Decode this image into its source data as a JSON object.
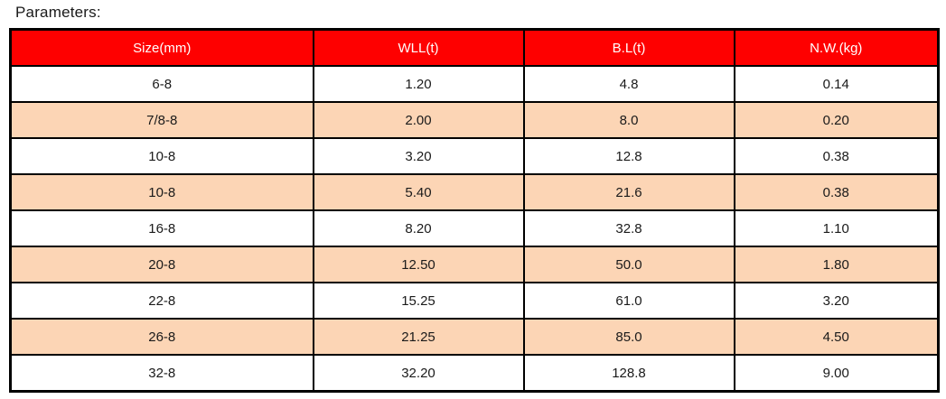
{
  "title": "Parameters:",
  "colors": {
    "header_bg": "#FE0000",
    "header_text": "#FFFFFF",
    "row_bg": "#FFFFFF",
    "row_alt_bg": "#FCD5B5",
    "border": "#000000"
  },
  "chart_data": {
    "type": "table",
    "title": "Parameters",
    "columns": [
      "Size(mm)",
      "WLL(t)",
      "B.L(t)",
      "N.W.(kg)"
    ],
    "rows": [
      [
        "6-8",
        "1.20",
        "4.8",
        "0.14"
      ],
      [
        "7/8-8",
        "2.00",
        "8.0",
        "0.20"
      ],
      [
        "10-8",
        "3.20",
        "12.8",
        "0.38"
      ],
      [
        "10-8",
        "5.40",
        "21.6",
        "0.38"
      ],
      [
        "16-8",
        "8.20",
        "32.8",
        "1.10"
      ],
      [
        "20-8",
        "12.50",
        "50.0",
        "1.80"
      ],
      [
        "22-8",
        "15.25",
        "61.0",
        "3.20"
      ],
      [
        "26-8",
        "21.25",
        "85.0",
        "4.50"
      ],
      [
        "32-8",
        "32.20",
        "128.8",
        "9.00"
      ]
    ]
  }
}
